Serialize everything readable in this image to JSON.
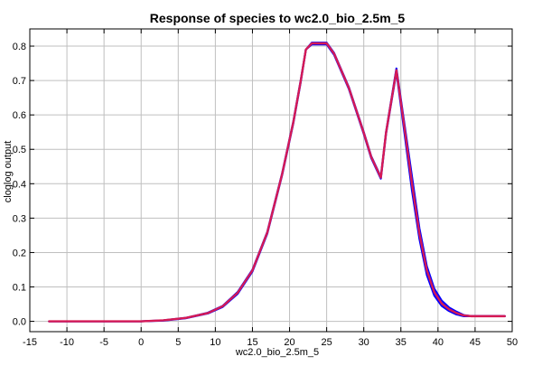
{
  "chart_data": {
    "type": "line",
    "title": "Response of species to wc2.0_bio_2.5m_5",
    "xlabel": "wc2.0_bio_2.5m_5",
    "ylabel": "cloglog output",
    "xlim": [
      -15,
      50
    ],
    "ylim": [
      -0.03,
      0.85
    ],
    "x_ticks": [
      -15,
      -10,
      -5,
      0,
      5,
      10,
      15,
      20,
      25,
      30,
      35,
      40,
      45,
      50
    ],
    "y_ticks": [
      0.0,
      0.1,
      0.2,
      0.3,
      0.4,
      0.5,
      0.6,
      0.7,
      0.8
    ],
    "grid": true,
    "colors": {
      "series_upper": "#0000ff",
      "series_lower": "#0000ff",
      "series_main": "#d61a54",
      "grid": "#bfbfbf"
    },
    "series": [
      {
        "role": "upper",
        "x": [
          -12.4,
          -5,
          0,
          3,
          6,
          9,
          11,
          13,
          15,
          17,
          19,
          20.5,
          21.5,
          22.2,
          23,
          24,
          25,
          26,
          28,
          30,
          31,
          32.3,
          33,
          34.4,
          35.5,
          36.5,
          37.5,
          38.5,
          39.5,
          40.5,
          41.5,
          42.5,
          43.5,
          44.5,
          46,
          49
        ],
        "y": [
          0.0,
          0.0,
          0.0,
          0.003,
          0.01,
          0.025,
          0.045,
          0.085,
          0.15,
          0.26,
          0.43,
          0.58,
          0.7,
          0.79,
          0.81,
          0.81,
          0.81,
          0.78,
          0.68,
          0.55,
          0.48,
          0.42,
          0.55,
          0.735,
          0.57,
          0.42,
          0.27,
          0.16,
          0.095,
          0.06,
          0.04,
          0.028,
          0.018,
          0.015,
          0.015,
          0.015
        ]
      },
      {
        "role": "lower",
        "x": [
          -12.4,
          -5,
          0,
          3,
          6,
          9,
          11,
          13,
          15,
          17,
          19,
          20.5,
          21.5,
          22.2,
          23,
          24,
          25,
          26,
          28,
          30,
          31,
          32.3,
          33,
          34.4,
          35.5,
          36.5,
          37.5,
          38.5,
          39.5,
          40.5,
          41.5,
          42.5,
          43.5,
          44.5,
          46,
          49
        ],
        "y": [
          0.0,
          0.0,
          0.0,
          0.002,
          0.009,
          0.023,
          0.042,
          0.08,
          0.145,
          0.255,
          0.425,
          0.575,
          0.695,
          0.79,
          0.805,
          0.805,
          0.805,
          0.775,
          0.675,
          0.545,
          0.475,
          0.415,
          0.545,
          0.725,
          0.545,
          0.38,
          0.24,
          0.135,
          0.075,
          0.045,
          0.03,
          0.02,
          0.015,
          0.015,
          0.015,
          0.015
        ]
      },
      {
        "role": "mean",
        "x": [
          -12.4,
          -5,
          0,
          3,
          6,
          9,
          11,
          13,
          15,
          17,
          19,
          20.5,
          21.5,
          22.2,
          23,
          24,
          25,
          26,
          28,
          30,
          31,
          32.3,
          33,
          34.4,
          35.5,
          36.5,
          37.5,
          38.5,
          39.5,
          40.5,
          41.5,
          42.5,
          43.5,
          44.5,
          46,
          49
        ],
        "y": [
          0.0,
          0.0,
          0.0,
          0.003,
          0.01,
          0.024,
          0.044,
          0.083,
          0.148,
          0.258,
          0.428,
          0.578,
          0.698,
          0.79,
          0.808,
          0.808,
          0.808,
          0.778,
          0.678,
          0.548,
          0.478,
          0.418,
          0.548,
          0.73,
          0.56,
          0.4,
          0.255,
          0.148,
          0.085,
          0.052,
          0.035,
          0.024,
          0.017,
          0.015,
          0.015,
          0.015
        ]
      }
    ]
  }
}
